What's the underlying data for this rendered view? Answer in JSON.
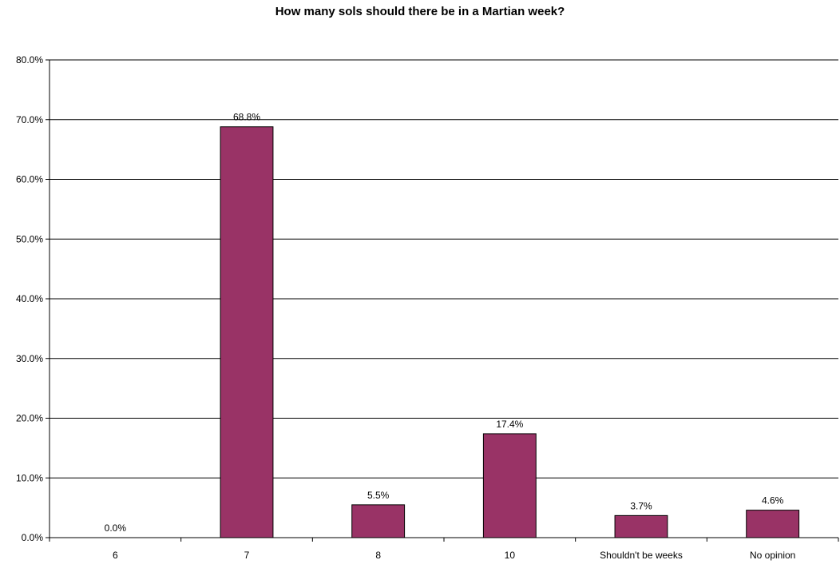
{
  "chart_data": {
    "type": "bar",
    "title": "How many sols should there be in a Martian week?",
    "xlabel": "",
    "ylabel": "",
    "categories": [
      "6",
      "7",
      "8",
      "10",
      "Shouldn't be weeks",
      "No opinion"
    ],
    "values": [
      0.0,
      68.8,
      5.5,
      17.4,
      3.7,
      4.6
    ],
    "data_labels": [
      "0.0%",
      "68.8%",
      "5.5%",
      "17.4%",
      "3.7%",
      "4.6%"
    ],
    "ylim": [
      0,
      80
    ],
    "yticks": [
      0,
      10,
      20,
      30,
      40,
      50,
      60,
      70,
      80
    ],
    "ytick_labels": [
      "0.0%",
      "10.0%",
      "20.0%",
      "30.0%",
      "40.0%",
      "50.0%",
      "60.0%",
      "70.0%",
      "80.0%"
    ],
    "grid": true,
    "legend": "none",
    "bar_color": "#993366"
  }
}
